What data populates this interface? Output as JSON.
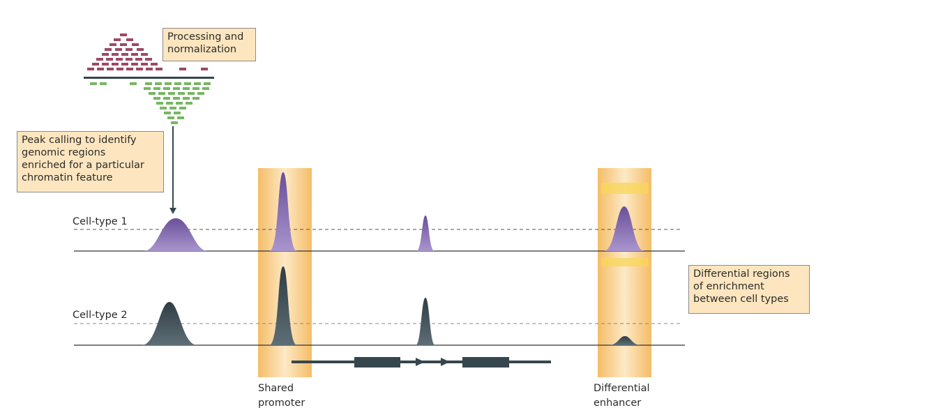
{
  "callouts": {
    "processing_line1": "Processing and",
    "processing_line2": "normalization",
    "peak_line1": "Peak calling to identify",
    "peak_line2": "genomic regions",
    "peak_line3": "enriched for a particular",
    "peak_line4": "chromatin feature",
    "diff_line1": "Differential regions",
    "diff_line2": "of enrichment",
    "diff_line3": "between cell types"
  },
  "tracks": {
    "celltype1_label": "Cell-type 1",
    "celltype2_label": "Cell-type 2"
  },
  "regions": {
    "promoter_line1": "Shared",
    "promoter_line2": "promoter",
    "enhancer_line1": "Differential",
    "enhancer_line2": "enhancer"
  },
  "colors": {
    "forward_reads": "#9c4a66",
    "reverse_reads": "#77b764",
    "celltype1_peak": "#7b62a8",
    "celltype2_peak": "#3d4e56",
    "highlight": "#f6c97a",
    "callout_fill": "#fde6bf",
    "gene": "#36464d"
  }
}
